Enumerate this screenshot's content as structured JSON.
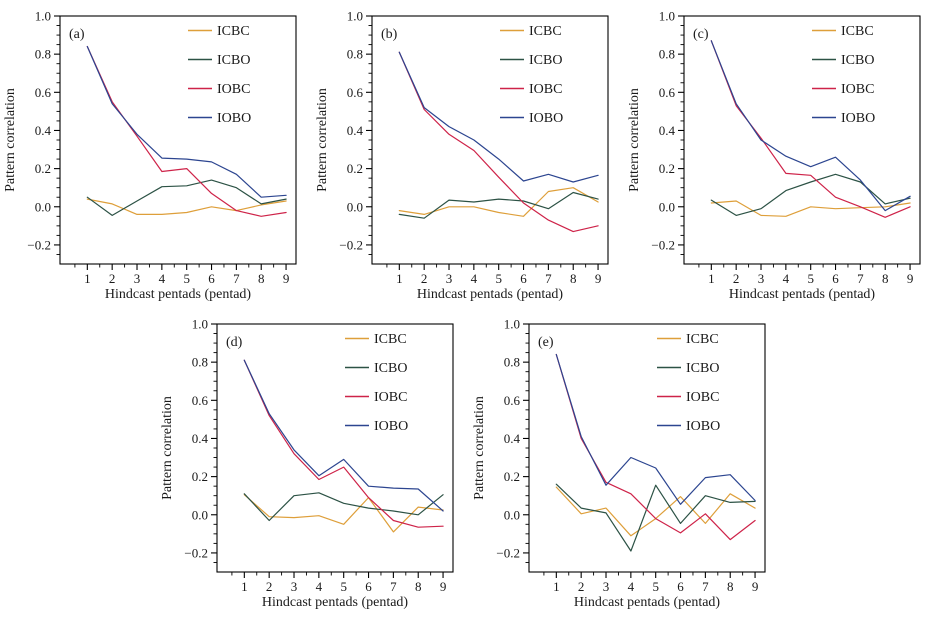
{
  "figure": {
    "background": "#ffffff"
  },
  "series_colors": {
    "ICBC": "#DE9F3A",
    "ICBO": "#2C5245",
    "IOBC": "#CE2349",
    "IOBO": "#2C4590"
  },
  "axis_style": {
    "line_color": "#000000",
    "text_color": "#1a1a1a"
  },
  "legend": {
    "entries": [
      "ICBC",
      "ICBO",
      "IOBC",
      "IOBO"
    ],
    "position": "top-right"
  },
  "chart_data": [
    {
      "id": "a",
      "panel_label": "(a)",
      "row": "top",
      "type": "line",
      "title": "",
      "xlabel": "Hindcast pentads (pentad)",
      "ylabel": "Pattern correlation",
      "xlim": [
        -0.1,
        9.4
      ],
      "ylim": [
        -0.3,
        1.0
      ],
      "xticks": [
        1,
        2,
        3,
        4,
        5,
        6,
        7,
        8,
        9
      ],
      "xtick_labels": [
        "1",
        "2",
        "3",
        "4",
        "5",
        "6",
        "7",
        "8",
        "9"
      ],
      "yticks": [
        1.0,
        0.8,
        0.6,
        0.4,
        0.2,
        0.0,
        -0.2
      ],
      "ytick_labels": [
        "1.0",
        "0.8",
        "0.6",
        "0.4",
        "0.2",
        "0.0",
        "−0.2"
      ],
      "x": [
        1,
        2,
        3,
        4,
        5,
        6,
        7,
        8,
        9
      ],
      "series": [
        {
          "name": "ICBC",
          "values": [
            0.04,
            0.015,
            -0.04,
            -0.04,
            -0.03,
            0.0,
            -0.02,
            0.01,
            0.03
          ]
        },
        {
          "name": "ICBO",
          "values": [
            0.05,
            -0.045,
            0.03,
            0.105,
            0.11,
            0.14,
            0.1,
            0.015,
            0.04
          ]
        },
        {
          "name": "IOBC",
          "values": [
            0.84,
            0.55,
            0.37,
            0.185,
            0.2,
            0.07,
            -0.02,
            -0.05,
            -0.03
          ]
        },
        {
          "name": "IOBO",
          "values": [
            0.84,
            0.54,
            0.38,
            0.255,
            0.25,
            0.235,
            0.17,
            0.05,
            0.06
          ]
        }
      ]
    },
    {
      "id": "b",
      "panel_label": "(b)",
      "row": "top",
      "type": "line",
      "title": "",
      "xlabel": "Hindcast pentads (pentad)",
      "ylabel": "Pattern correlation",
      "xlim": [
        -0.1,
        9.4
      ],
      "ylim": [
        -0.3,
        1.0
      ],
      "xticks": [
        1,
        2,
        3,
        4,
        5,
        6,
        7,
        8,
        9
      ],
      "xtick_labels": [
        "1",
        "2",
        "3",
        "4",
        "5",
        "6",
        "7",
        "8",
        "9"
      ],
      "yticks": [
        1.0,
        0.8,
        0.6,
        0.4,
        0.2,
        0.0,
        -0.2
      ],
      "ytick_labels": [
        "1.0",
        "0.8",
        "0.6",
        "0.4",
        "0.2",
        "0.0",
        "−0.2"
      ],
      "x": [
        1,
        2,
        3,
        4,
        5,
        6,
        7,
        8,
        9
      ],
      "series": [
        {
          "name": "ICBC",
          "values": [
            -0.02,
            -0.04,
            0.0,
            0.0,
            -0.03,
            -0.05,
            0.08,
            0.1,
            0.025
          ]
        },
        {
          "name": "ICBO",
          "values": [
            -0.04,
            -0.06,
            0.035,
            0.025,
            0.04,
            0.03,
            -0.01,
            0.075,
            0.04
          ]
        },
        {
          "name": "IOBC",
          "values": [
            0.81,
            0.51,
            0.38,
            0.295,
            0.155,
            0.02,
            -0.07,
            -0.13,
            -0.1
          ]
        },
        {
          "name": "IOBO",
          "values": [
            0.81,
            0.52,
            0.42,
            0.35,
            0.25,
            0.135,
            0.17,
            0.13,
            0.165
          ]
        }
      ]
    },
    {
      "id": "c",
      "panel_label": "(c)",
      "row": "top",
      "type": "line",
      "title": "",
      "xlabel": "Hindcast pentads (pentad)",
      "ylabel": "Pattern correlation",
      "xlim": [
        -0.1,
        9.4
      ],
      "ylim": [
        -0.3,
        1.0
      ],
      "xticks": [
        1,
        2,
        3,
        4,
        5,
        6,
        7,
        8,
        9
      ],
      "xtick_labels": [
        "1",
        "2",
        "3",
        "4",
        "5",
        "6",
        "7",
        "8",
        "9"
      ],
      "yticks": [
        1.0,
        0.8,
        0.6,
        0.4,
        0.2,
        0.0,
        -0.2
      ],
      "ytick_labels": [
        "1.0",
        "0.8",
        "0.6",
        "0.4",
        "0.2",
        "0.0",
        "−0.2"
      ],
      "x": [
        1,
        2,
        3,
        4,
        5,
        6,
        7,
        8,
        9
      ],
      "series": [
        {
          "name": "ICBC",
          "values": [
            0.02,
            0.03,
            -0.045,
            -0.05,
            0.0,
            -0.01,
            -0.005,
            0.0,
            0.02
          ]
        },
        {
          "name": "ICBO",
          "values": [
            0.035,
            -0.045,
            -0.01,
            0.085,
            0.13,
            0.17,
            0.13,
            0.015,
            0.045
          ]
        },
        {
          "name": "IOBC",
          "values": [
            0.87,
            0.53,
            0.36,
            0.175,
            0.165,
            0.05,
            0.0,
            -0.055,
            0.0
          ]
        },
        {
          "name": "IOBO",
          "values": [
            0.87,
            0.54,
            0.35,
            0.265,
            0.21,
            0.26,
            0.14,
            -0.02,
            0.055
          ]
        }
      ]
    },
    {
      "id": "d",
      "panel_label": "(d)",
      "row": "bottom",
      "type": "line",
      "title": "",
      "xlabel": "Hindcast pentads (pentad)",
      "ylabel": "Pattern correlation",
      "xlim": [
        -0.1,
        9.4
      ],
      "ylim": [
        -0.3,
        1.0
      ],
      "xticks": [
        1,
        2,
        3,
        4,
        5,
        6,
        7,
        8,
        9
      ],
      "xtick_labels": [
        "1",
        "2",
        "3",
        "4",
        "5",
        "6",
        "7",
        "8",
        "9"
      ],
      "yticks": [
        1.0,
        0.8,
        0.6,
        0.4,
        0.2,
        0.0,
        -0.2
      ],
      "ytick_labels": [
        "1.0",
        "0.8",
        "0.6",
        "0.4",
        "0.2",
        "0.0",
        "−0.2"
      ],
      "x": [
        1,
        2,
        3,
        4,
        5,
        6,
        7,
        8,
        9
      ],
      "series": [
        {
          "name": "ICBC",
          "values": [
            0.105,
            -0.01,
            -0.015,
            -0.005,
            -0.05,
            0.09,
            -0.09,
            0.04,
            0.025
          ]
        },
        {
          "name": "ICBO",
          "values": [
            0.11,
            -0.03,
            0.1,
            0.115,
            0.06,
            0.035,
            0.02,
            0.0,
            0.105
          ]
        },
        {
          "name": "IOBC",
          "values": [
            0.81,
            0.52,
            0.32,
            0.185,
            0.25,
            0.09,
            -0.03,
            -0.065,
            -0.06
          ]
        },
        {
          "name": "IOBO",
          "values": [
            0.81,
            0.53,
            0.34,
            0.205,
            0.29,
            0.15,
            0.14,
            0.135,
            0.02
          ]
        }
      ]
    },
    {
      "id": "e",
      "panel_label": "(e)",
      "row": "bottom",
      "type": "line",
      "title": "",
      "xlabel": "Hindcast pentads (pentad)",
      "ylabel": "Pattern correlation",
      "xlim": [
        -0.1,
        9.4
      ],
      "ylim": [
        -0.3,
        1.0
      ],
      "xticks": [
        1,
        2,
        3,
        4,
        5,
        6,
        7,
        8,
        9
      ],
      "xtick_labels": [
        "1",
        "2",
        "3",
        "4",
        "5",
        "6",
        "7",
        "8",
        "9"
      ],
      "yticks": [
        1.0,
        0.8,
        0.6,
        0.4,
        0.2,
        0.0,
        -0.2
      ],
      "ytick_labels": [
        "1.0",
        "0.8",
        "0.6",
        "0.4",
        "0.2",
        "0.0",
        "−0.2"
      ],
      "x": [
        1,
        2,
        3,
        4,
        5,
        6,
        7,
        8,
        9
      ],
      "series": [
        {
          "name": "ICBC",
          "values": [
            0.145,
            0.005,
            0.035,
            -0.11,
            -0.02,
            0.095,
            -0.045,
            0.11,
            0.035
          ]
        },
        {
          "name": "ICBO",
          "values": [
            0.16,
            0.035,
            0.01,
            -0.19,
            0.155,
            -0.045,
            0.1,
            0.065,
            0.07
          ]
        },
        {
          "name": "IOBC",
          "values": [
            0.84,
            0.4,
            0.17,
            0.11,
            -0.02,
            -0.095,
            0.005,
            -0.13,
            -0.03
          ]
        },
        {
          "name": "IOBO",
          "values": [
            0.84,
            0.41,
            0.155,
            0.3,
            0.245,
            0.055,
            0.195,
            0.21,
            0.075
          ]
        }
      ]
    }
  ]
}
